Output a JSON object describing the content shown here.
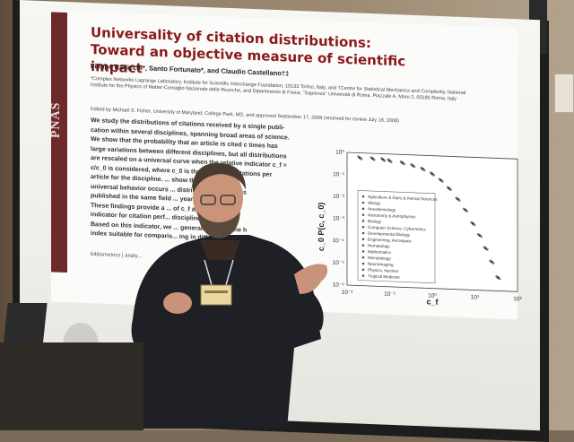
{
  "slide": {
    "journal": "PNAS",
    "title": "Universality of citation distributions: Toward an objective measure of scientific impact",
    "authors": "Filippo Radicchi*, Santo Fortunato*, and Claudio Castellano†‡",
    "affiliation": "*Complex Networks Lagrange Laboratory, Institute for Scientific Interchange Foundation, 10133 Torino, Italy; and †Centre for Statistical Mechanics and Complexity, National Institute for the Physics of Matter-Consiglio Nazionale delle Ricerche, and Dipartimento di Fisica, \"Sapienza\" Università di Roma, Piazzale A. Moro 2, 00185 Roma, Italy",
    "edited_by": "Edited by Michael S. Fisher, University of Maryland, College Park, MD, and approved September 17, 2008 (received for review July 18, 2008)",
    "abstract_lines": [
      "We study the distributions of citations received by a single publi-",
      "cation within several disciplines, spanning broad areas of science.",
      "We show that the probability that an article is cited c times has",
      "large variations between different disciplines, but all distributions",
      "are rescaled on a universal curve when the relative indicator c_f =",
      "c/c_0 is considered, where c_0 is the number of citations per",
      "article for the discipline. ... show that the same",
      "universal behavior occurs ... distributions of articles",
      "published in the same field ... years, are compared.",
      "These findings provide a ... of c_f as an unbiased",
      "indicator for citation perf... disciplines and years.",
      "Based on this indicator, we ... generalization of the h",
      "index suitable for comparis... ing in different fields."
    ],
    "keywords": "bibliometrics | analy..."
  },
  "chart_data": {
    "type": "scatter",
    "title": "",
    "xlabel": "c_f",
    "ylabel": "c_0 P(c, c_0)",
    "x_scale": "log",
    "y_scale": "log",
    "x_ticks": [
      "10⁻²",
      "10⁻¹",
      "10⁰",
      "10¹",
      "10²"
    ],
    "y_ticks": [
      "10⁰",
      "10⁻¹",
      "10⁻²",
      "10⁻³",
      "10⁻⁴",
      "10⁻⁵",
      "10⁻⁶"
    ],
    "legend_entries": [
      "Agriculture & Dairy & Animal Sciences",
      "Allergy",
      "Anesthesiology",
      "Astronomy & Astrophysics",
      "Biology",
      "Computer Science, Cybernetics",
      "Developmental Biology",
      "Engineering, Aerospace",
      "Hematology",
      "Mathematics",
      "Microbiology",
      "Neuroimaging",
      "Physics, Nuclear",
      "Tropical Medicine"
    ],
    "series": [
      {
        "x": [
          0.02,
          0.04,
          0.07,
          0.1,
          0.2,
          0.35,
          0.6,
          1,
          1.6,
          2.5,
          4,
          6,
          9,
          13,
          18,
          25,
          35
        ],
        "y": [
          0.6,
          0.58,
          0.55,
          0.5,
          0.42,
          0.33,
          0.24,
          0.15,
          0.08,
          0.035,
          0.012,
          0.004,
          0.001,
          0.0003,
          8e-05,
          2e-05,
          4e-06
        ]
      }
    ],
    "xlim": [
      0.01,
      100
    ],
    "ylim": [
      1e-06,
      1
    ]
  },
  "person": {
    "badge": ""
  }
}
